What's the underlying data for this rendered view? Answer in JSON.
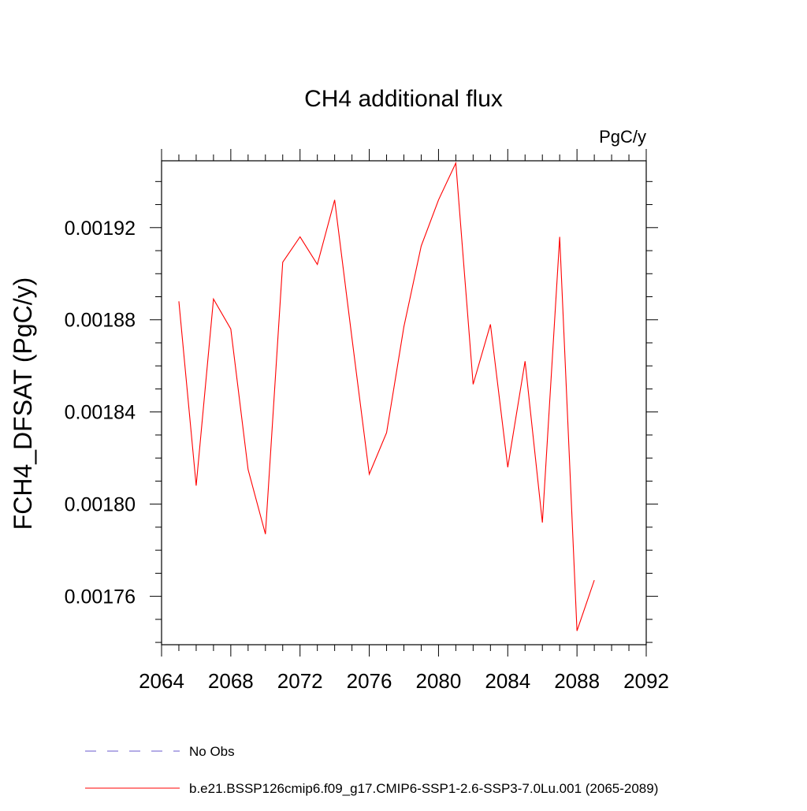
{
  "chart_data": {
    "type": "line",
    "title": "CH4 additional flux",
    "units_label": "PgC/y",
    "ylabel": "FCH4_DFSAT  (PgC/y)",
    "xlabel": "",
    "xlim": [
      2064,
      2092
    ],
    "ylim": [
      0.001739,
      0.001949
    ],
    "x_ticks": [
      2064,
      2068,
      2072,
      2076,
      2080,
      2084,
      2088,
      2092
    ],
    "x_tick_labels": [
      "2064",
      "2068",
      "2072",
      "2076",
      "2080",
      "2084",
      "2088",
      "2092"
    ],
    "y_ticks": [
      0.00176,
      0.0018,
      0.00184,
      0.00188,
      0.00192
    ],
    "y_tick_labels": [
      "0.00176",
      "0.00180",
      "0.00184",
      "0.00188",
      "0.00192"
    ],
    "x_minor_step": 1,
    "y_minor_step": 1e-05,
    "grid": false,
    "legend_placement": "bottom",
    "series": [
      {
        "name": "b.e21.BSSP126cmip6.f09_g17.CMIP6-SSP1-2.6-SSP3-7.0Lu.001 (2065-2089)",
        "color": "#ff0000",
        "style": "solid",
        "x": [
          2065,
          2066,
          2067,
          2068,
          2069,
          2070,
          2071,
          2072,
          2073,
          2074,
          2075,
          2076,
          2077,
          2078,
          2079,
          2080,
          2081,
          2082,
          2083,
          2084,
          2085,
          2086,
          2087,
          2088,
          2089
        ],
        "values": [
          0.001888,
          0.001808,
          0.001889,
          0.001876,
          0.001815,
          0.001787,
          0.001905,
          0.001916,
          0.001904,
          0.001932,
          0.001872,
          0.001813,
          0.001831,
          0.001877,
          0.001912,
          0.001932,
          0.001948,
          0.001852,
          0.001878,
          0.001816,
          0.001862,
          0.001792,
          0.001916,
          0.001745,
          0.001767
        ]
      }
    ],
    "legend": [
      {
        "label": "No Obs",
        "color": "#6a5acd",
        "style": "dashed"
      },
      {
        "label": "b.e21.BSSP126cmip6.f09_g17.CMIP6-SSP1-2.6-SSP3-7.0Lu.001 (2065-2089)",
        "color": "#ff0000",
        "style": "solid"
      }
    ]
  }
}
